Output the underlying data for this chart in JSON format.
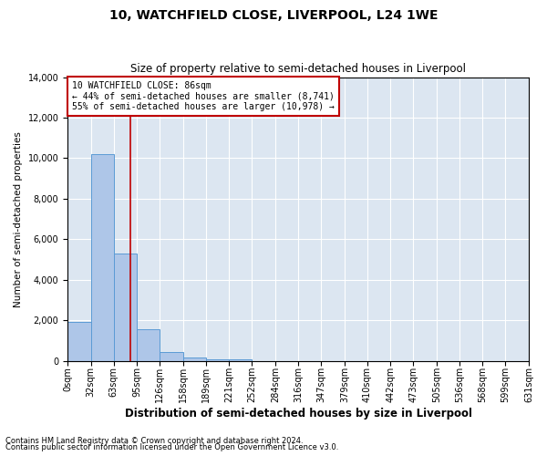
{
  "title": "10, WATCHFIELD CLOSE, LIVERPOOL, L24 1WE",
  "subtitle": "Size of property relative to semi-detached houses in Liverpool",
  "xlabel": "Distribution of semi-detached houses by size in Liverpool",
  "ylabel": "Number of semi-detached properties",
  "footnote1": "Contains HM Land Registry data © Crown copyright and database right 2024.",
  "footnote2": "Contains public sector information licensed under the Open Government Licence v3.0.",
  "annotation_title": "10 WATCHFIELD CLOSE: 86sqm",
  "annotation_line1": "← 44% of semi-detached houses are smaller (8,741)",
  "annotation_line2": "55% of semi-detached houses are larger (10,978) →",
  "bar_edges": [
    0,
    32,
    63,
    95,
    126,
    158,
    189,
    221,
    252,
    284,
    316,
    347,
    379,
    410,
    442,
    473,
    505,
    536,
    568,
    599,
    631
  ],
  "bar_values": [
    1900,
    10200,
    5300,
    1550,
    450,
    150,
    90,
    70,
    0,
    0,
    0,
    0,
    0,
    0,
    0,
    0,
    0,
    0,
    0,
    0
  ],
  "bar_color": "#aec6e8",
  "bar_edge_color": "#5b9bd5",
  "property_size": 86,
  "vline_color": "#c00000",
  "annotation_box_color": "#c00000",
  "ylim": [
    0,
    14000
  ],
  "xlim": [
    0,
    631
  ],
  "background_color": "#dce6f1",
  "fig_background_color": "#ffffff",
  "grid_color": "#ffffff",
  "yticks": [
    0,
    2000,
    4000,
    6000,
    8000,
    10000,
    12000,
    14000
  ],
  "title_fontsize": 10,
  "subtitle_fontsize": 8.5,
  "ylabel_fontsize": 7.5,
  "xlabel_fontsize": 8.5,
  "tick_fontsize": 7,
  "annotation_fontsize": 7,
  "footnote_fontsize": 6
}
